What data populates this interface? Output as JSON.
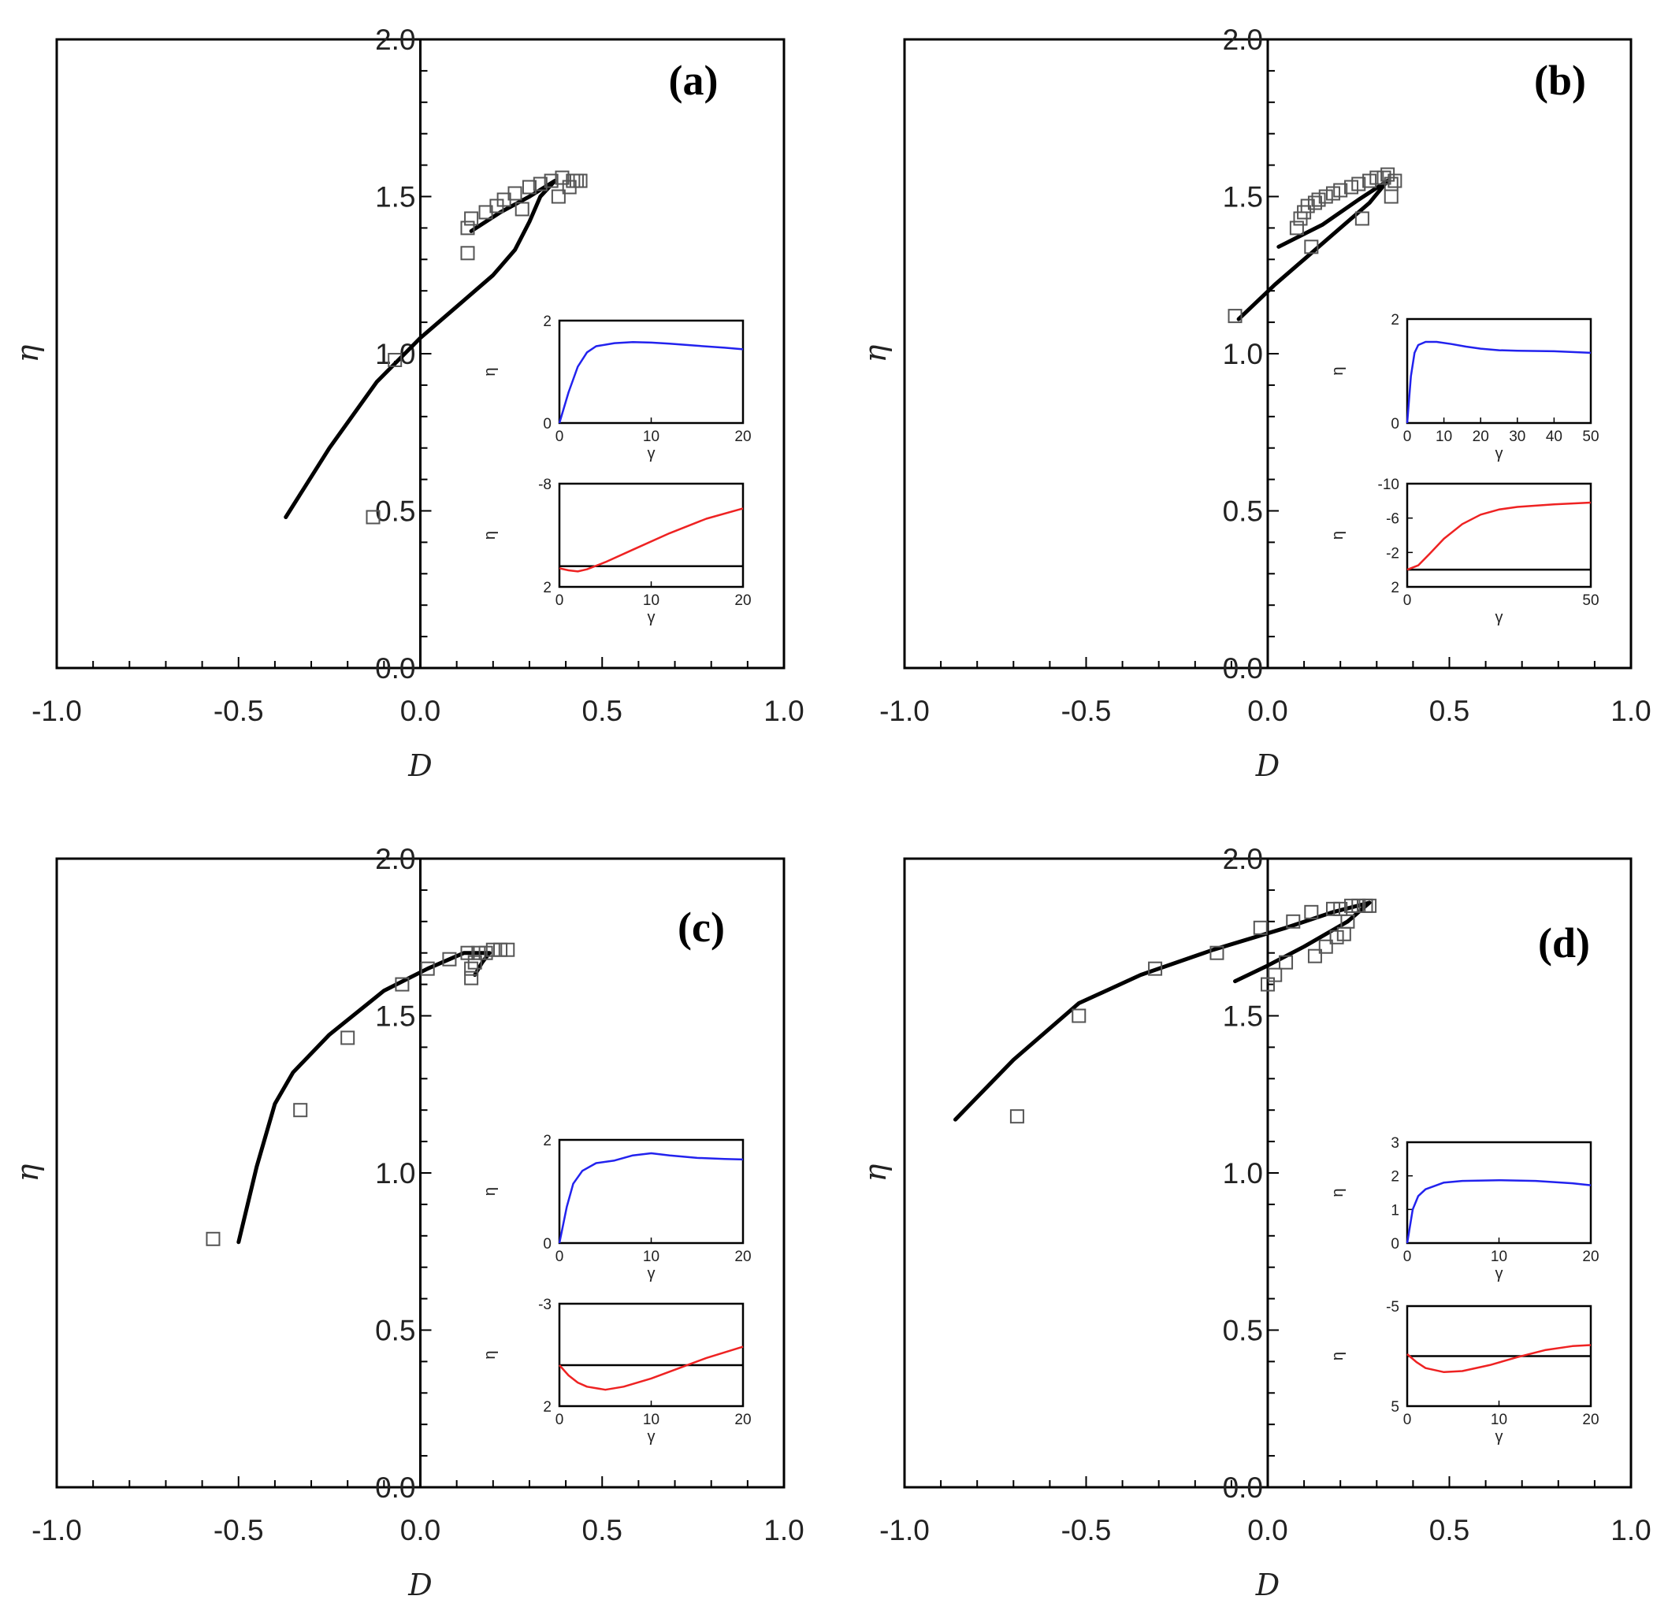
{
  "chart_data": [
    {
      "type": "scatter",
      "panel_label": "(a)",
      "xlabel": "D",
      "ylabel": "η",
      "xlim": [
        -1.0,
        1.0
      ],
      "ylim": [
        0.0,
        2.0
      ],
      "xticks": [
        "-1.0",
        "-0.5",
        "0.0",
        "0.5",
        "1.0"
      ],
      "yticks": [
        "0.0",
        "0.5",
        "1.0",
        "1.5",
        "2.0"
      ],
      "squares": [
        [
          -0.13,
          0.48
        ],
        [
          -0.07,
          0.98
        ],
        [
          0.13,
          1.32
        ],
        [
          0.13,
          1.4
        ],
        [
          0.14,
          1.43
        ],
        [
          0.18,
          1.45
        ],
        [
          0.21,
          1.47
        ],
        [
          0.23,
          1.49
        ],
        [
          0.26,
          1.51
        ],
        [
          0.28,
          1.46
        ],
        [
          0.3,
          1.53
        ],
        [
          0.33,
          1.54
        ],
        [
          0.36,
          1.55
        ],
        [
          0.38,
          1.5
        ],
        [
          0.39,
          1.56
        ],
        [
          0.41,
          1.53
        ],
        [
          0.42,
          1.55
        ],
        [
          0.43,
          1.55
        ],
        [
          0.44,
          1.55
        ]
      ],
      "line": [
        [
          -0.37,
          0.48
        ],
        [
          -0.25,
          0.7
        ],
        [
          -0.12,
          0.91
        ],
        [
          0.0,
          1.05
        ],
        [
          0.1,
          1.15
        ],
        [
          0.2,
          1.25
        ],
        [
          0.26,
          1.33
        ],
        [
          0.3,
          1.42
        ],
        [
          0.33,
          1.5
        ],
        [
          0.37,
          1.55
        ],
        [
          0.3,
          1.5
        ],
        [
          0.22,
          1.45
        ],
        [
          0.14,
          1.39
        ]
      ],
      "insets": [
        {
          "ylabel": "η",
          "xlabel": "γ",
          "color": "#2222ee",
          "xlim": [
            0,
            20
          ],
          "ylim": [
            0,
            2
          ],
          "xticks": [
            "0",
            "10",
            "20"
          ],
          "yticks": [
            "0",
            "2"
          ],
          "curve": [
            [
              0,
              0
            ],
            [
              1,
              0.6
            ],
            [
              2,
              1.1
            ],
            [
              3,
              1.38
            ],
            [
              4,
              1.5
            ],
            [
              6,
              1.56
            ],
            [
              8,
              1.58
            ],
            [
              10,
              1.57
            ],
            [
              12,
              1.55
            ],
            [
              15,
              1.51
            ],
            [
              18,
              1.47
            ],
            [
              20,
              1.44
            ]
          ]
        },
        {
          "ylabel": "η",
          "xlabel": "γ",
          "color": "#ee2222",
          "baseline": 0,
          "xlim": [
            0,
            20
          ],
          "ylim": [
            2,
            -8
          ],
          "xticks": [
            "0",
            "10",
            "20"
          ],
          "yticks": [
            "-8",
            "2"
          ],
          "curve": [
            [
              0,
              0.2
            ],
            [
              1,
              0.4
            ],
            [
              2,
              0.5
            ],
            [
              3,
              0.3
            ],
            [
              5,
              -0.4
            ],
            [
              8,
              -1.6
            ],
            [
              12,
              -3.2
            ],
            [
              16,
              -4.6
            ],
            [
              20,
              -5.6
            ]
          ]
        }
      ]
    },
    {
      "type": "scatter",
      "panel_label": "(b)",
      "xlabel": "D",
      "ylabel": "η",
      "xlim": [
        -1.0,
        1.0
      ],
      "ylim": [
        0.0,
        2.0
      ],
      "xticks": [
        "-1.0",
        "-0.5",
        "0.0",
        "0.5",
        "1.0"
      ],
      "yticks": [
        "0.0",
        "0.5",
        "1.0",
        "1.5",
        "2.0"
      ],
      "squares": [
        [
          -0.09,
          1.12
        ],
        [
          0.08,
          1.4
        ],
        [
          0.09,
          1.43
        ],
        [
          0.1,
          1.45
        ],
        [
          0.11,
          1.47
        ],
        [
          0.12,
          1.34
        ],
        [
          0.13,
          1.48
        ],
        [
          0.14,
          1.49
        ],
        [
          0.16,
          1.5
        ],
        [
          0.18,
          1.51
        ],
        [
          0.2,
          1.52
        ],
        [
          0.23,
          1.53
        ],
        [
          0.25,
          1.54
        ],
        [
          0.26,
          1.43
        ],
        [
          0.28,
          1.55
        ],
        [
          0.3,
          1.56
        ],
        [
          0.32,
          1.56
        ],
        [
          0.33,
          1.57
        ],
        [
          0.34,
          1.5
        ],
        [
          0.34,
          1.54
        ],
        [
          0.35,
          1.55
        ]
      ],
      "line": [
        [
          -0.08,
          1.11
        ],
        [
          0.02,
          1.22
        ],
        [
          0.1,
          1.3
        ],
        [
          0.2,
          1.4
        ],
        [
          0.28,
          1.48
        ],
        [
          0.33,
          1.55
        ],
        [
          0.25,
          1.49
        ],
        [
          0.15,
          1.41
        ],
        [
          0.03,
          1.34
        ]
      ],
      "insets": [
        {
          "ylabel": "η",
          "xlabel": "γ",
          "color": "#2222ee",
          "xlim": [
            0,
            50
          ],
          "ylim": [
            0,
            2
          ],
          "xticks": [
            "0",
            "10",
            "20",
            "30",
            "40",
            "50"
          ],
          "yticks": [
            "0",
            "2"
          ],
          "curve": [
            [
              0,
              0
            ],
            [
              1,
              0.9
            ],
            [
              2,
              1.35
            ],
            [
              3,
              1.5
            ],
            [
              5,
              1.56
            ],
            [
              8,
              1.56
            ],
            [
              12,
              1.52
            ],
            [
              16,
              1.47
            ],
            [
              20,
              1.43
            ],
            [
              25,
              1.4
            ],
            [
              30,
              1.39
            ],
            [
              40,
              1.38
            ],
            [
              50,
              1.35
            ]
          ]
        },
        {
          "ylabel": "η",
          "xlabel": "γ",
          "color": "#ee2222",
          "baseline": 0,
          "xlim": [
            0,
            50
          ],
          "ylim": [
            2,
            -10
          ],
          "xticks": [
            "0",
            "50"
          ],
          "yticks": [
            "-10",
            "-6",
            "-2",
            "2"
          ],
          "curve": [
            [
              0,
              0
            ],
            [
              3,
              -0.5
            ],
            [
              6,
              -1.8
            ],
            [
              10,
              -3.6
            ],
            [
              15,
              -5.3
            ],
            [
              20,
              -6.4
            ],
            [
              25,
              -7.0
            ],
            [
              30,
              -7.3
            ],
            [
              40,
              -7.6
            ],
            [
              50,
              -7.8
            ]
          ]
        }
      ]
    },
    {
      "type": "scatter",
      "panel_label": "(c)",
      "xlabel": "D",
      "ylabel": "η",
      "xlim": [
        -1.0,
        1.0
      ],
      "ylim": [
        0.0,
        2.0
      ],
      "xticks": [
        "-1.0",
        "-0.5",
        "0.0",
        "0.5",
        "1.0"
      ],
      "yticks": [
        "0.0",
        "0.5",
        "1.0",
        "1.5",
        "2.0"
      ],
      "squares": [
        [
          -0.57,
          0.79
        ],
        [
          -0.33,
          1.2
        ],
        [
          -0.2,
          1.43
        ],
        [
          -0.05,
          1.6
        ],
        [
          0.02,
          1.65
        ],
        [
          0.08,
          1.68
        ],
        [
          0.13,
          1.7
        ],
        [
          0.14,
          1.62
        ],
        [
          0.14,
          1.65
        ],
        [
          0.15,
          1.67
        ],
        [
          0.16,
          1.7
        ],
        [
          0.18,
          1.7
        ],
        [
          0.2,
          1.71
        ],
        [
          0.22,
          1.71
        ],
        [
          0.24,
          1.71
        ]
      ],
      "line": [
        [
          -0.5,
          0.78
        ],
        [
          -0.45,
          1.02
        ],
        [
          -0.4,
          1.22
        ],
        [
          -0.35,
          1.32
        ],
        [
          -0.25,
          1.44
        ],
        [
          -0.1,
          1.58
        ],
        [
          0.02,
          1.65
        ],
        [
          0.12,
          1.7
        ],
        [
          0.19,
          1.7
        ],
        [
          0.17,
          1.67
        ],
        [
          0.15,
          1.63
        ]
      ],
      "insets": [
        {
          "ylabel": "η",
          "xlabel": "γ",
          "color": "#2222ee",
          "xlim": [
            0,
            20
          ],
          "ylim": [
            0,
            2
          ],
          "xticks": [
            "0",
            "10",
            "20"
          ],
          "yticks": [
            "0",
            "2"
          ],
          "curve": [
            [
              0,
              0
            ],
            [
              0.8,
              0.7
            ],
            [
              1.5,
              1.15
            ],
            [
              2.5,
              1.4
            ],
            [
              4,
              1.55
            ],
            [
              6,
              1.6
            ],
            [
              8,
              1.7
            ],
            [
              10,
              1.74
            ],
            [
              12,
              1.7
            ],
            [
              15,
              1.65
            ],
            [
              18,
              1.63
            ],
            [
              20,
              1.62
            ]
          ]
        },
        {
          "ylabel": "η",
          "xlabel": "γ",
          "color": "#ee2222",
          "baseline": 0,
          "xlim": [
            0,
            20
          ],
          "ylim": [
            2,
            -3
          ],
          "xticks": [
            "0",
            "10",
            "20"
          ],
          "yticks": [
            "-3",
            "2"
          ],
          "curve": [
            [
              0,
              0
            ],
            [
              1,
              0.5
            ],
            [
              2,
              0.85
            ],
            [
              3,
              1.05
            ],
            [
              5,
              1.2
            ],
            [
              7,
              1.05
            ],
            [
              10,
              0.65
            ],
            [
              13,
              0.15
            ],
            [
              16,
              -0.35
            ],
            [
              20,
              -0.9
            ]
          ]
        }
      ]
    },
    {
      "type": "scatter",
      "panel_label": "(d)",
      "xlabel": "D",
      "ylabel": "η",
      "xlim": [
        -1.0,
        1.0
      ],
      "ylim": [
        0.0,
        2.0
      ],
      "xticks": [
        "-1.0",
        "-0.5",
        "0.0",
        "0.5",
        "1.0"
      ],
      "yticks": [
        "0.0",
        "0.5",
        "1.0",
        "1.5",
        "2.0"
      ],
      "squares": [
        [
          -0.69,
          1.18
        ],
        [
          -0.52,
          1.5
        ],
        [
          -0.31,
          1.65
        ],
        [
          -0.14,
          1.7
        ],
        [
          -0.02,
          1.78
        ],
        [
          0.0,
          1.6
        ],
        [
          0.02,
          1.63
        ],
        [
          0.05,
          1.67
        ],
        [
          0.07,
          1.8
        ],
        [
          0.12,
          1.83
        ],
        [
          0.13,
          1.69
        ],
        [
          0.16,
          1.72
        ],
        [
          0.18,
          1.84
        ],
        [
          0.19,
          1.75
        ],
        [
          0.2,
          1.84
        ],
        [
          0.21,
          1.76
        ],
        [
          0.22,
          1.8
        ],
        [
          0.23,
          1.85
        ],
        [
          0.25,
          1.85
        ],
        [
          0.27,
          1.85
        ],
        [
          0.28,
          1.85
        ]
      ],
      "line": [
        [
          -0.86,
          1.17
        ],
        [
          -0.7,
          1.36
        ],
        [
          -0.52,
          1.54
        ],
        [
          -0.35,
          1.63
        ],
        [
          -0.15,
          1.71
        ],
        [
          0.05,
          1.78
        ],
        [
          0.18,
          1.83
        ],
        [
          0.28,
          1.86
        ],
        [
          0.22,
          1.8
        ],
        [
          0.1,
          1.72
        ],
        [
          0.0,
          1.66
        ],
        [
          -0.09,
          1.61
        ]
      ],
      "insets": [
        {
          "ylabel": "η",
          "xlabel": "γ",
          "color": "#2222ee",
          "xlim": [
            0,
            20
          ],
          "ylim": [
            0,
            3
          ],
          "xticks": [
            "0",
            "10",
            "20"
          ],
          "yticks": [
            "0",
            "1",
            "2",
            "3"
          ],
          "curve": [
            [
              0,
              0
            ],
            [
              0.6,
              1.0
            ],
            [
              1.2,
              1.4
            ],
            [
              2,
              1.6
            ],
            [
              4,
              1.8
            ],
            [
              6,
              1.85
            ],
            [
              10,
              1.87
            ],
            [
              14,
              1.85
            ],
            [
              18,
              1.78
            ],
            [
              20,
              1.72
            ]
          ]
        },
        {
          "ylabel": "η",
          "xlabel": "γ",
          "color": "#ee2222",
          "baseline": 0,
          "xlim": [
            0,
            20
          ],
          "ylim": [
            5,
            -5
          ],
          "xticks": [
            "0",
            "10",
            "20"
          ],
          "yticks": [
            "-5",
            "5"
          ],
          "curve": [
            [
              0,
              -0.2
            ],
            [
              1,
              0.6
            ],
            [
              2,
              1.2
            ],
            [
              4,
              1.6
            ],
            [
              6,
              1.5
            ],
            [
              9,
              0.9
            ],
            [
              12,
              0.1
            ],
            [
              15,
              -0.6
            ],
            [
              18,
              -1.0
            ],
            [
              20,
              -1.1
            ]
          ]
        }
      ]
    }
  ]
}
